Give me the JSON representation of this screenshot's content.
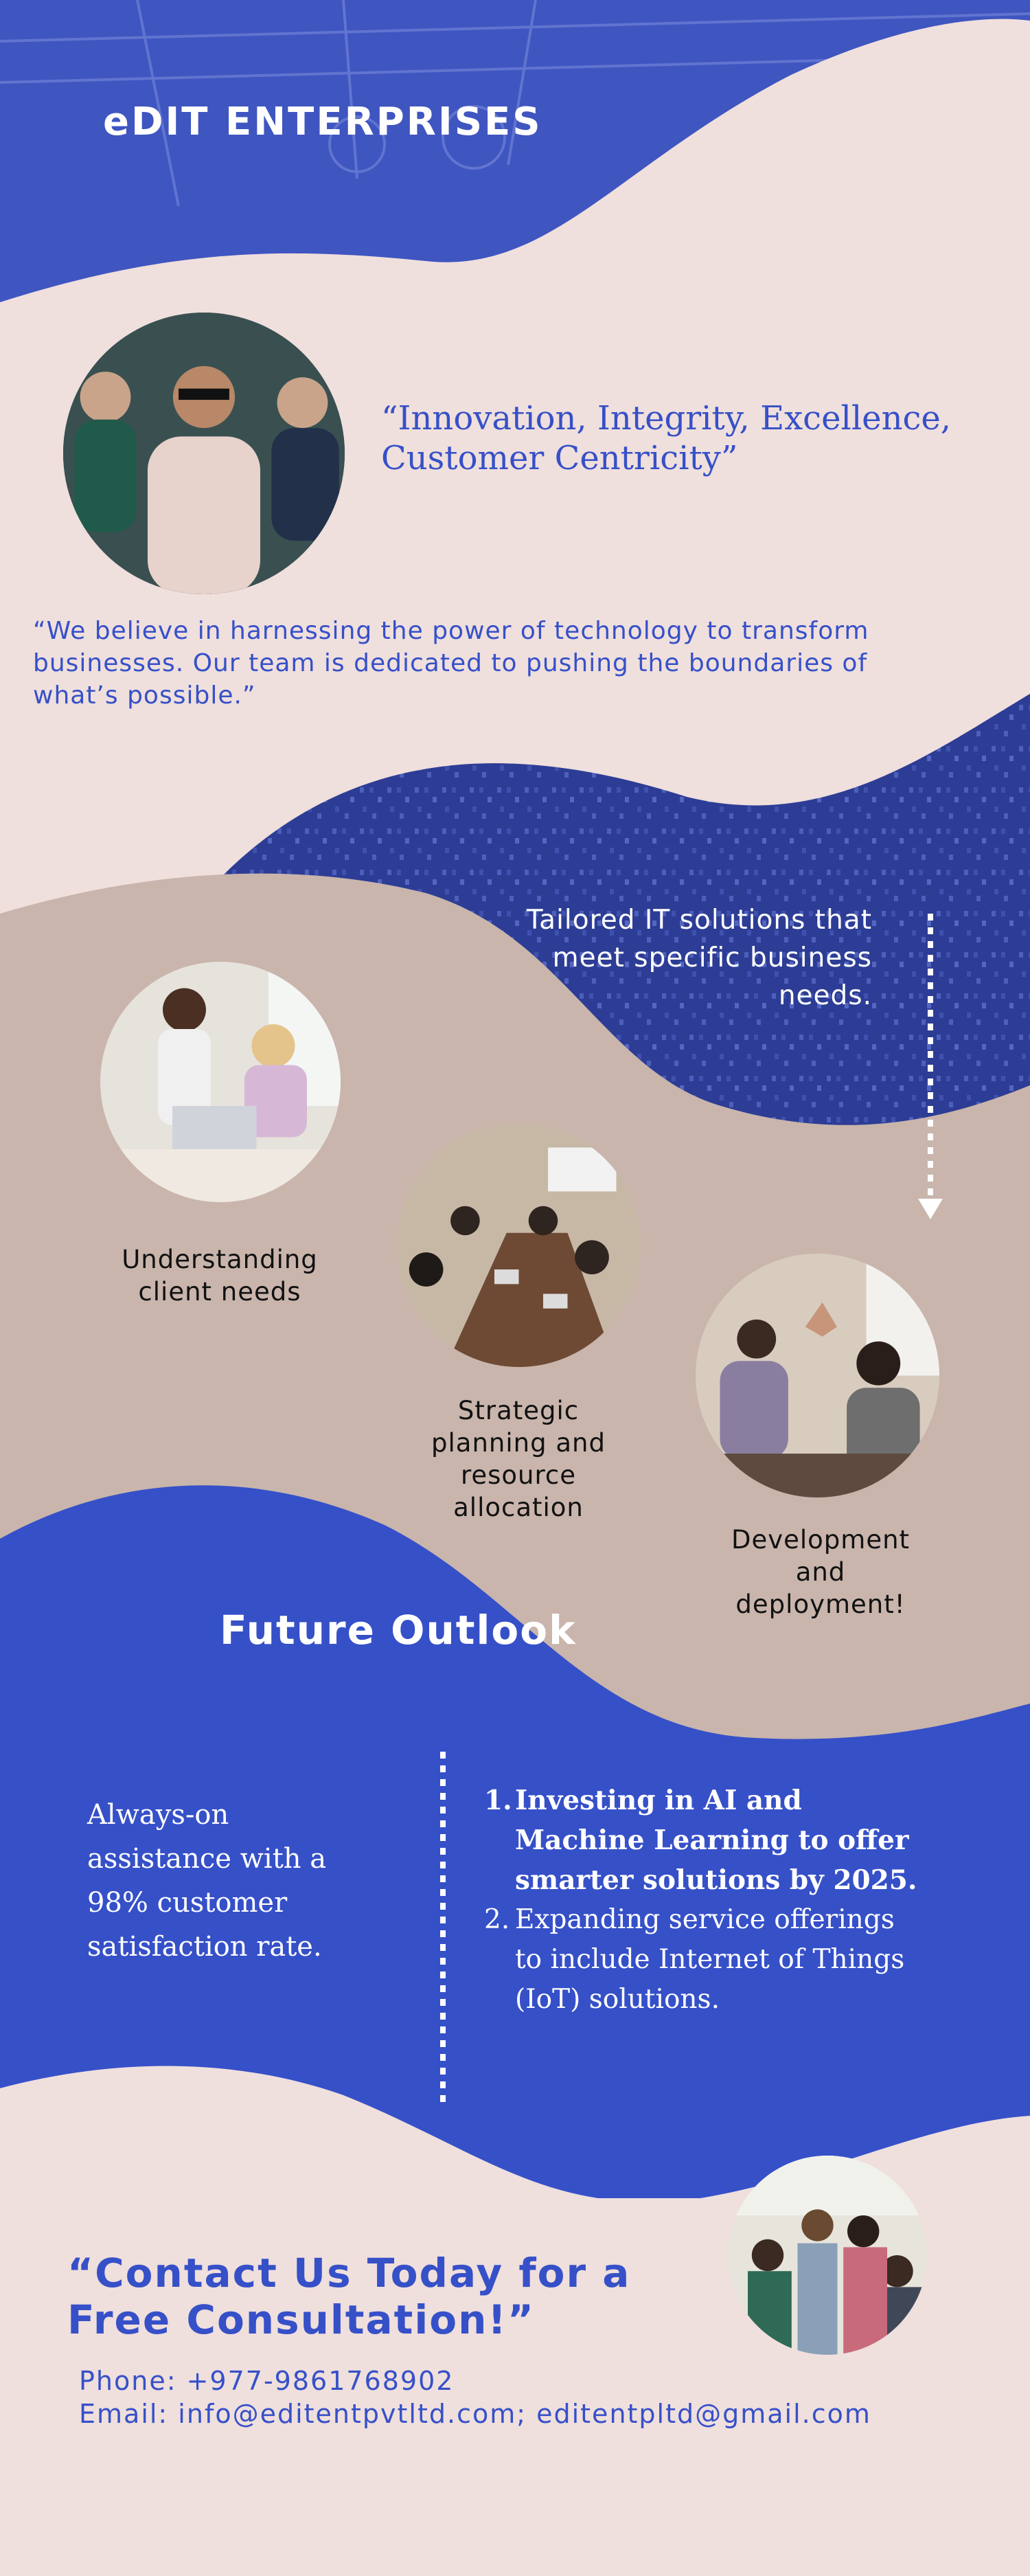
{
  "brand": {
    "name": "eDIT ENTERPRISES"
  },
  "motto": "“Innovation, Integrity, Excellence, Customer Centricity”",
  "belief": "“We believe in harnessing the power of technology to transform businesses. Our team is dedicated to pushing the boundaries of what’s possible.”",
  "solutions": {
    "tagline": "Tailored IT solutions that meet specific business needs."
  },
  "process": {
    "steps": [
      {
        "label": "Understanding client needs"
      },
      {
        "label": "Strategic planning and resource allocation"
      },
      {
        "label": "Development and deployment!"
      }
    ]
  },
  "outlook": {
    "title": "Future Outlook",
    "assistance": "Always-on assistance with a 98% customer satisfaction rate.",
    "goals": [
      {
        "num": "1.",
        "text": "Investing in AI and Machine Learning to offer smarter solutions by 2025."
      },
      {
        "num": "2.",
        "text": "Expanding service offerings to include Internet of Things (IoT) solutions."
      }
    ]
  },
  "contact": {
    "title": "“Contact Us Today for a Free Consultation!”",
    "phone": "Phone: +977-9861768902",
    "email": "Email: info@editentpvtltd.com; editentpltd@gmail.com"
  },
  "colors": {
    "blue": "#3650c8",
    "pink": "#efdfdd",
    "tan": "#c9b5ac",
    "navy": "#2a3a8a"
  },
  "icons": {
    "arrow": "arrow-down-icon"
  }
}
